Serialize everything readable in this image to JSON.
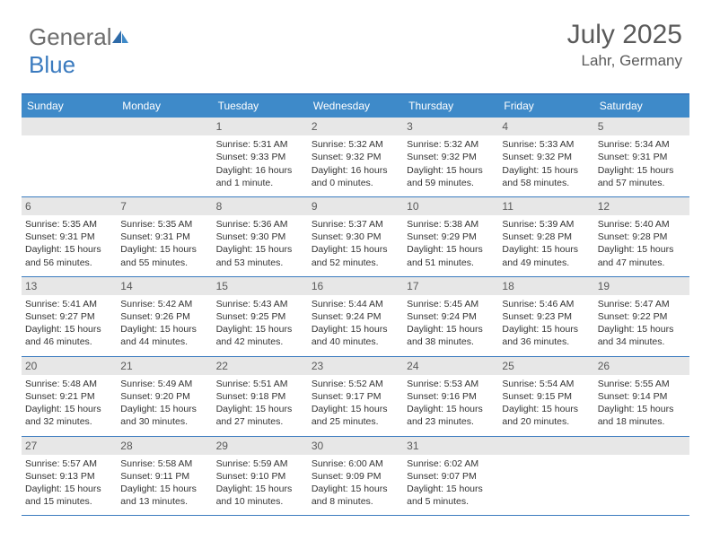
{
  "brand": {
    "part1": "General",
    "part2": "Blue"
  },
  "title": "July 2025",
  "location": "Lahr, Germany",
  "colors": {
    "header_bg": "#3e8ac9",
    "header_border": "#3b7bbf",
    "daynum_bg": "#e7e7e7",
    "text": "#333333",
    "muted": "#5a5a5a"
  },
  "day_headers": [
    "Sunday",
    "Monday",
    "Tuesday",
    "Wednesday",
    "Thursday",
    "Friday",
    "Saturday"
  ],
  "leading_blanks": 2,
  "days": [
    {
      "n": 1,
      "sr": "5:31 AM",
      "ss": "9:33 PM",
      "dl": "16 hours and 1 minute."
    },
    {
      "n": 2,
      "sr": "5:32 AM",
      "ss": "9:32 PM",
      "dl": "16 hours and 0 minutes."
    },
    {
      "n": 3,
      "sr": "5:32 AM",
      "ss": "9:32 PM",
      "dl": "15 hours and 59 minutes."
    },
    {
      "n": 4,
      "sr": "5:33 AM",
      "ss": "9:32 PM",
      "dl": "15 hours and 58 minutes."
    },
    {
      "n": 5,
      "sr": "5:34 AM",
      "ss": "9:31 PM",
      "dl": "15 hours and 57 minutes."
    },
    {
      "n": 6,
      "sr": "5:35 AM",
      "ss": "9:31 PM",
      "dl": "15 hours and 56 minutes."
    },
    {
      "n": 7,
      "sr": "5:35 AM",
      "ss": "9:31 PM",
      "dl": "15 hours and 55 minutes."
    },
    {
      "n": 8,
      "sr": "5:36 AM",
      "ss": "9:30 PM",
      "dl": "15 hours and 53 minutes."
    },
    {
      "n": 9,
      "sr": "5:37 AM",
      "ss": "9:30 PM",
      "dl": "15 hours and 52 minutes."
    },
    {
      "n": 10,
      "sr": "5:38 AM",
      "ss": "9:29 PM",
      "dl": "15 hours and 51 minutes."
    },
    {
      "n": 11,
      "sr": "5:39 AM",
      "ss": "9:28 PM",
      "dl": "15 hours and 49 minutes."
    },
    {
      "n": 12,
      "sr": "5:40 AM",
      "ss": "9:28 PM",
      "dl": "15 hours and 47 minutes."
    },
    {
      "n": 13,
      "sr": "5:41 AM",
      "ss": "9:27 PM",
      "dl": "15 hours and 46 minutes."
    },
    {
      "n": 14,
      "sr": "5:42 AM",
      "ss": "9:26 PM",
      "dl": "15 hours and 44 minutes."
    },
    {
      "n": 15,
      "sr": "5:43 AM",
      "ss": "9:25 PM",
      "dl": "15 hours and 42 minutes."
    },
    {
      "n": 16,
      "sr": "5:44 AM",
      "ss": "9:24 PM",
      "dl": "15 hours and 40 minutes."
    },
    {
      "n": 17,
      "sr": "5:45 AM",
      "ss": "9:24 PM",
      "dl": "15 hours and 38 minutes."
    },
    {
      "n": 18,
      "sr": "5:46 AM",
      "ss": "9:23 PM",
      "dl": "15 hours and 36 minutes."
    },
    {
      "n": 19,
      "sr": "5:47 AM",
      "ss": "9:22 PM",
      "dl": "15 hours and 34 minutes."
    },
    {
      "n": 20,
      "sr": "5:48 AM",
      "ss": "9:21 PM",
      "dl": "15 hours and 32 minutes."
    },
    {
      "n": 21,
      "sr": "5:49 AM",
      "ss": "9:20 PM",
      "dl": "15 hours and 30 minutes."
    },
    {
      "n": 22,
      "sr": "5:51 AM",
      "ss": "9:18 PM",
      "dl": "15 hours and 27 minutes."
    },
    {
      "n": 23,
      "sr": "5:52 AM",
      "ss": "9:17 PM",
      "dl": "15 hours and 25 minutes."
    },
    {
      "n": 24,
      "sr": "5:53 AM",
      "ss": "9:16 PM",
      "dl": "15 hours and 23 minutes."
    },
    {
      "n": 25,
      "sr": "5:54 AM",
      "ss": "9:15 PM",
      "dl": "15 hours and 20 minutes."
    },
    {
      "n": 26,
      "sr": "5:55 AM",
      "ss": "9:14 PM",
      "dl": "15 hours and 18 minutes."
    },
    {
      "n": 27,
      "sr": "5:57 AM",
      "ss": "9:13 PM",
      "dl": "15 hours and 15 minutes."
    },
    {
      "n": 28,
      "sr": "5:58 AM",
      "ss": "9:11 PM",
      "dl": "15 hours and 13 minutes."
    },
    {
      "n": 29,
      "sr": "5:59 AM",
      "ss": "9:10 PM",
      "dl": "15 hours and 10 minutes."
    },
    {
      "n": 30,
      "sr": "6:00 AM",
      "ss": "9:09 PM",
      "dl": "15 hours and 8 minutes."
    },
    {
      "n": 31,
      "sr": "6:02 AM",
      "ss": "9:07 PM",
      "dl": "15 hours and 5 minutes."
    }
  ],
  "labels": {
    "sunrise": "Sunrise:",
    "sunset": "Sunset:",
    "daylight": "Daylight:"
  }
}
